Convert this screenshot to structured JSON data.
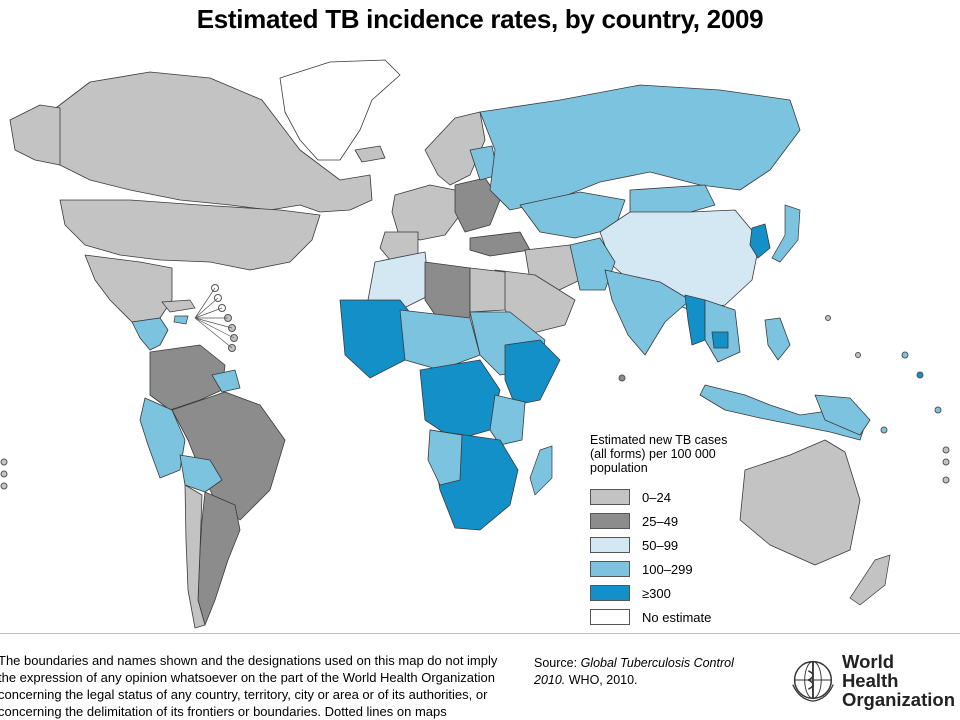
{
  "title": "Estimated TB incidence rates, by country, 2009",
  "colors": {
    "cat_0_24": "#c3c3c3",
    "cat_25_49": "#8c8c8c",
    "cat_50_99": "#d3e8f2",
    "cat_100_299": "#7cc3df",
    "cat_300_plus": "#1390c8",
    "no_estimate": "#ffffff",
    "border": "#3a3a3a"
  },
  "legend": {
    "title": "Estimated new TB cases (all forms) per 100 000 population",
    "items": [
      {
        "label": "0–24",
        "color": "#c3c3c3"
      },
      {
        "label": "25–49",
        "color": "#8c8c8c"
      },
      {
        "label": "50–99",
        "color": "#d3e8f2"
      },
      {
        "label": "100–299",
        "color": "#7cc3df"
      },
      {
        "label": "≥300",
        "color": "#1390c8"
      },
      {
        "label": "No estimate",
        "color": "#ffffff"
      }
    ]
  },
  "disclaimer": "The boundaries and names shown and the designations used on this map do not imply the expression of any opinion whatsoever on the part of the World Health Organization concerning the legal status of any country, territory, city or area or of its authorities, or concerning the delimitation of its frontiers or boundaries. Dotted lines on maps",
  "source": {
    "prefix": "Source: ",
    "publication": "Global Tuberculosis Control 2010.",
    "suffix": " WHO, 2010."
  },
  "logo": {
    "line1": "World Health",
    "line2": "Organization"
  }
}
